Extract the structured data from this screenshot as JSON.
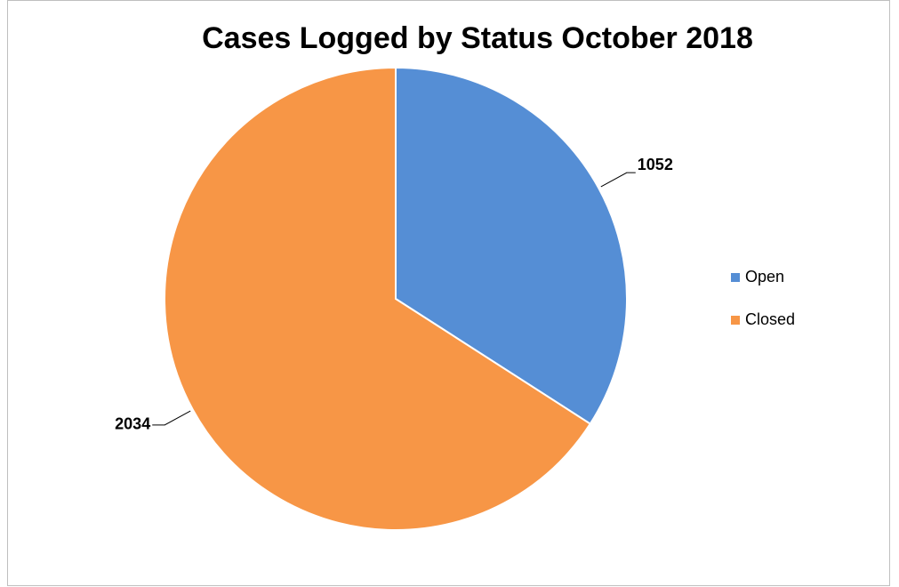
{
  "chart_data": {
    "type": "pie",
    "title": "Cases Logged by Status October 2018",
    "categories": [
      "Open",
      "Closed"
    ],
    "values": [
      1052,
      2034
    ],
    "colors": [
      "#558ed5",
      "#f79646"
    ],
    "legend": "right"
  }
}
